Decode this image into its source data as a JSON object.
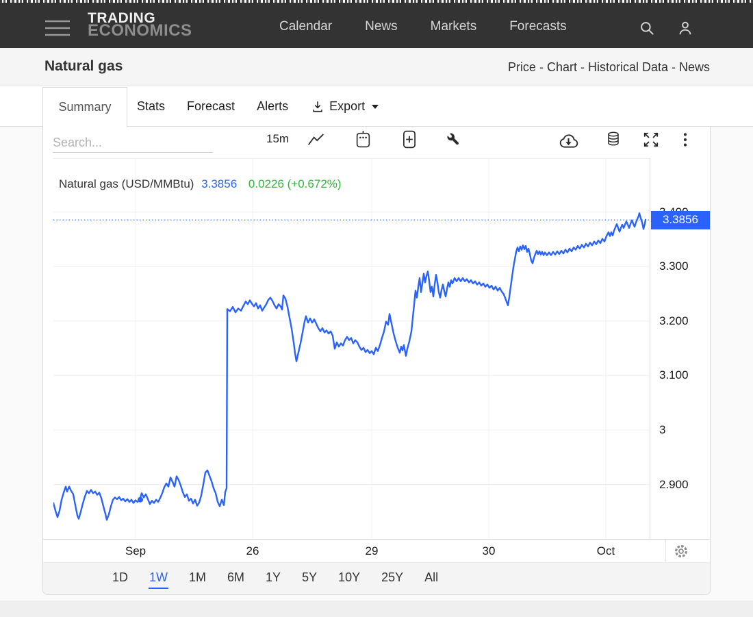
{
  "header": {
    "logo_line1": "TRADING",
    "logo_line2": "ECONOMICS",
    "nav_items": [
      "Calendar",
      "News",
      "Markets",
      "Forecasts"
    ]
  },
  "title_bar": {
    "title": "Natural gas",
    "links": "Price - Chart - Historical Data - News"
  },
  "tabs": {
    "active": "Summary",
    "items": [
      "Summary",
      "Stats",
      "Forecast",
      "Alerts"
    ],
    "export_label": "Export"
  },
  "toolbar": {
    "search_placeholder": "Search...",
    "interval": "15m"
  },
  "icons": {
    "menu": "hamburger",
    "search": "magnifier",
    "account": "person-outline",
    "export": "download-arrow-tray",
    "chart_style": "zigzag-line",
    "date_interval": "calendar-dots",
    "compare": "plus-box",
    "tools": "wrench",
    "download": "cloud-download",
    "data_source": "database-cylinders",
    "fullscreen": "expand-arrows",
    "more": "kebab-dots",
    "settings": "gear"
  },
  "colors": {
    "accent_blue": "#2962ff",
    "up_green": "#2abb38",
    "header_bg": "#333333",
    "grid": "#f0f0f0"
  },
  "range_bar": {
    "active": "1W",
    "items": [
      "1D",
      "1W",
      "1M",
      "6M",
      "1Y",
      "5Y",
      "10Y",
      "25Y",
      "All"
    ]
  },
  "chart_data": {
    "type": "line",
    "title": "Natural gas (USD/MMBtu)",
    "last_price": "3.3856",
    "change": "0.0226",
    "change_pct": "(+0.672%)",
    "price_line": 3.3856,
    "ylim": [
      2.8,
      3.499
    ],
    "x_extent": 871,
    "grid": true,
    "line_color": "#2962ff",
    "y_ticks": [
      {
        "value": 3.4,
        "label": "3.400"
      },
      {
        "value": 3.3,
        "label": "3.300"
      },
      {
        "value": 3.2,
        "label": "3.200"
      },
      {
        "value": 3.1,
        "label": "3.100"
      },
      {
        "value": 3.0,
        "label": "3"
      },
      {
        "value": 2.9,
        "label": "2.900"
      }
    ],
    "x_ticks": [
      {
        "label": "Sep",
        "dx": 120
      },
      {
        "label": "26",
        "dx": 291
      },
      {
        "label": "29",
        "dx": 465
      },
      {
        "label": "30",
        "dx": 636
      },
      {
        "label": "Oct",
        "dx": 807
      }
    ],
    "marker_dot": {
      "dx": 127,
      "price": 2.872
    },
    "points": [
      [
        0,
        2.866
      ],
      [
        3,
        2.852
      ],
      [
        6,
        2.84
      ],
      [
        9,
        2.852
      ],
      [
        12,
        2.872
      ],
      [
        15,
        2.885
      ],
      [
        18,
        2.896
      ],
      [
        20,
        2.887
      ],
      [
        23,
        2.896
      ],
      [
        26,
        2.888
      ],
      [
        29,
        2.882
      ],
      [
        32,
        2.862
      ],
      [
        35,
        2.843
      ],
      [
        37,
        2.837
      ],
      [
        40,
        2.85
      ],
      [
        43,
        2.865
      ],
      [
        46,
        2.878
      ],
      [
        49,
        2.888
      ],
      [
        52,
        2.884
      ],
      [
        55,
        2.89
      ],
      [
        58,
        2.884
      ],
      [
        61,
        2.887
      ],
      [
        64,
        2.881
      ],
      [
        67,
        2.885
      ],
      [
        70,
        2.875
      ],
      [
        73,
        2.86
      ],
      [
        76,
        2.846
      ],
      [
        78,
        2.835
      ],
      [
        81,
        2.845
      ],
      [
        84,
        2.86
      ],
      [
        87,
        2.872
      ],
      [
        90,
        2.876
      ],
      [
        93,
        2.873
      ],
      [
        96,
        2.877
      ],
      [
        99,
        2.871
      ],
      [
        102,
        2.874
      ],
      [
        105,
        2.869
      ],
      [
        108,
        2.873
      ],
      [
        111,
        2.868
      ],
      [
        114,
        2.872
      ],
      [
        117,
        2.866
      ],
      [
        120,
        2.871
      ],
      [
        123,
        2.868
      ],
      [
        126,
        2.872
      ],
      [
        129,
        2.884
      ],
      [
        132,
        2.876
      ],
      [
        135,
        2.882
      ],
      [
        138,
        2.873
      ],
      [
        141,
        2.864
      ],
      [
        144,
        2.87
      ],
      [
        147,
        2.866
      ],
      [
        150,
        2.872
      ],
      [
        153,
        2.868
      ],
      [
        156,
        2.875
      ],
      [
        159,
        2.884
      ],
      [
        162,
        2.895
      ],
      [
        165,
        2.902
      ],
      [
        168,
        2.896
      ],
      [
        171,
        2.913
      ],
      [
        174,
        2.905
      ],
      [
        177,
        2.896
      ],
      [
        180,
        2.915
      ],
      [
        183,
        2.908
      ],
      [
        186,
        2.898
      ],
      [
        189,
        2.886
      ],
      [
        192,
        2.877
      ],
      [
        195,
        2.882
      ],
      [
        198,
        2.87
      ],
      [
        201,
        2.874
      ],
      [
        204,
        2.865
      ],
      [
        207,
        2.872
      ],
      [
        210,
        2.861
      ],
      [
        213,
        2.867
      ],
      [
        216,
        2.88
      ],
      [
        219,
        2.9
      ],
      [
        222,
        2.922
      ],
      [
        225,
        2.926
      ],
      [
        228,
        2.916
      ],
      [
        231,
        2.906
      ],
      [
        234,
        2.893
      ],
      [
        237,
        2.884
      ],
      [
        240,
        2.868
      ],
      [
        243,
        2.86
      ],
      [
        246,
        2.872
      ],
      [
        249,
        2.862
      ],
      [
        251,
        2.886
      ],
      [
        253,
        2.893
      ],
      [
        254,
        3.222
      ],
      [
        258,
        3.218
      ],
      [
        262,
        3.226
      ],
      [
        266,
        3.216
      ],
      [
        270,
        3.223
      ],
      [
        274,
        3.219
      ],
      [
        278,
        3.229
      ],
      [
        281,
        3.236
      ],
      [
        284,
        3.231
      ],
      [
        287,
        3.238
      ],
      [
        290,
        3.232
      ],
      [
        293,
        3.227
      ],
      [
        296,
        3.233
      ],
      [
        299,
        3.223
      ],
      [
        302,
        3.229
      ],
      [
        305,
        3.219
      ],
      [
        308,
        3.225
      ],
      [
        311,
        3.231
      ],
      [
        314,
        3.239
      ],
      [
        317,
        3.243
      ],
      [
        320,
        3.237
      ],
      [
        323,
        3.229
      ],
      [
        326,
        3.223
      ],
      [
        329,
        3.231
      ],
      [
        332,
        3.227
      ],
      [
        334,
        3.221
      ],
      [
        336,
        3.247
      ],
      [
        339,
        3.241
      ],
      [
        342,
        3.226
      ],
      [
        345,
        3.206
      ],
      [
        348,
        3.186
      ],
      [
        351,
        3.161
      ],
      [
        353,
        3.141
      ],
      [
        355,
        3.126
      ],
      [
        358,
        3.143
      ],
      [
        361,
        3.159
      ],
      [
        364,
        3.179
      ],
      [
        367,
        3.199
      ],
      [
        369,
        3.209
      ],
      [
        372,
        3.197
      ],
      [
        375,
        3.205
      ],
      [
        378,
        3.197
      ],
      [
        381,
        3.203
      ],
      [
        384,
        3.195
      ],
      [
        387,
        3.187
      ],
      [
        390,
        3.181
      ],
      [
        393,
        3.187
      ],
      [
        396,
        3.179
      ],
      [
        399,
        3.183
      ],
      [
        402,
        3.177
      ],
      [
        405,
        3.181
      ],
      [
        408,
        3.173
      ],
      [
        411,
        3.149
      ],
      [
        414,
        3.161
      ],
      [
        417,
        3.153
      ],
      [
        420,
        3.159
      ],
      [
        423,
        3.155
      ],
      [
        426,
        3.165
      ],
      [
        429,
        3.171
      ],
      [
        432,
        3.165
      ],
      [
        435,
        3.169
      ],
      [
        438,
        3.159
      ],
      [
        441,
        3.165
      ],
      [
        444,
        3.161
      ],
      [
        447,
        3.153
      ],
      [
        450,
        3.147
      ],
      [
        453,
        3.151
      ],
      [
        456,
        3.143
      ],
      [
        459,
        3.147
      ],
      [
        462,
        3.141
      ],
      [
        465,
        3.145
      ],
      [
        468,
        3.139
      ],
      [
        471,
        3.151
      ],
      [
        474,
        3.145
      ],
      [
        477,
        3.156
      ],
      [
        480,
        3.169
      ],
      [
        483,
        3.181
      ],
      [
        486,
        3.199
      ],
      [
        489,
        3.193
      ],
      [
        491,
        3.213
      ],
      [
        493,
        3.201
      ],
      [
        495,
        3.189
      ],
      [
        497,
        3.177
      ],
      [
        500,
        3.163
      ],
      [
        503,
        3.151
      ],
      [
        506,
        3.142
      ],
      [
        508,
        3.153
      ],
      [
        510,
        3.146
      ],
      [
        512,
        3.156
      ],
      [
        515,
        3.136
      ],
      [
        517,
        3.149
      ],
      [
        520,
        3.163
      ],
      [
        523,
        3.181
      ],
      [
        525,
        3.206
      ],
      [
        527,
        3.231
      ],
      [
        529,
        3.256
      ],
      [
        531,
        3.243
      ],
      [
        533,
        3.263
      ],
      [
        535,
        3.279
      ],
      [
        537,
        3.253
      ],
      [
        539,
        3.269
      ],
      [
        541,
        3.287
      ],
      [
        543,
        3.271
      ],
      [
        545,
        3.283
      ],
      [
        547,
        3.291
      ],
      [
        549,
        3.273
      ],
      [
        551,
        3.253
      ],
      [
        553,
        3.263
      ],
      [
        555,
        3.245
      ],
      [
        557,
        3.267
      ],
      [
        559,
        3.285
      ],
      [
        561,
        3.271
      ],
      [
        563,
        3.253
      ],
      [
        565,
        3.243
      ],
      [
        567,
        3.257
      ],
      [
        569,
        3.267
      ],
      [
        571,
        3.255
      ],
      [
        573,
        3.245
      ],
      [
        575,
        3.259
      ],
      [
        577,
        3.271
      ],
      [
        579,
        3.263
      ],
      [
        581,
        3.275
      ],
      [
        583,
        3.269
      ],
      [
        586,
        3.279
      ],
      [
        589,
        3.273
      ],
      [
        592,
        3.279
      ],
      [
        595,
        3.273
      ],
      [
        598,
        3.279
      ],
      [
        601,
        3.273
      ],
      [
        604,
        3.277
      ],
      [
        607,
        3.271
      ],
      [
        610,
        3.275
      ],
      [
        613,
        3.269
      ],
      [
        616,
        3.273
      ],
      [
        619,
        3.267
      ],
      [
        622,
        3.271
      ],
      [
        625,
        3.265
      ],
      [
        628,
        3.269
      ],
      [
        631,
        3.263
      ],
      [
        634,
        3.267
      ],
      [
        637,
        3.261
      ],
      [
        640,
        3.265
      ],
      [
        643,
        3.258
      ],
      [
        646,
        3.263
      ],
      [
        649,
        3.256
      ],
      [
        652,
        3.261
      ],
      [
        655,
        3.254
      ],
      [
        658,
        3.249
      ],
      [
        661,
        3.239
      ],
      [
        664,
        3.229
      ],
      [
        666,
        3.244
      ],
      [
        668,
        3.263
      ],
      [
        670,
        3.281
      ],
      [
        672,
        3.299
      ],
      [
        674,
        3.313
      ],
      [
        676,
        3.327
      ],
      [
        678,
        3.335
      ],
      [
        680,
        3.328
      ],
      [
        682,
        3.337
      ],
      [
        684,
        3.331
      ],
      [
        686,
        3.339
      ],
      [
        688,
        3.332
      ],
      [
        690,
        3.338
      ],
      [
        692,
        3.327
      ],
      [
        694,
        3.333
      ],
      [
        696,
        3.323
      ],
      [
        698,
        3.311
      ],
      [
        700,
        3.306
      ],
      [
        702,
        3.316
      ],
      [
        704,
        3.323
      ],
      [
        706,
        3.329
      ],
      [
        708,
        3.323
      ],
      [
        710,
        3.328
      ],
      [
        712,
        3.322
      ],
      [
        714,
        3.327
      ],
      [
        716,
        3.321
      ],
      [
        718,
        3.326
      ],
      [
        721,
        3.321
      ],
      [
        724,
        3.326
      ],
      [
        727,
        3.321
      ],
      [
        730,
        3.327
      ],
      [
        733,
        3.322
      ],
      [
        736,
        3.328
      ],
      [
        739,
        3.323
      ],
      [
        742,
        3.329
      ],
      [
        745,
        3.324
      ],
      [
        748,
        3.331
      ],
      [
        751,
        3.326
      ],
      [
        754,
        3.333
      ],
      [
        757,
        3.328
      ],
      [
        760,
        3.335
      ],
      [
        763,
        3.331
      ],
      [
        766,
        3.338
      ],
      [
        769,
        3.333
      ],
      [
        772,
        3.34
      ],
      [
        775,
        3.335
      ],
      [
        778,
        3.342
      ],
      [
        781,
        3.337
      ],
      [
        784,
        3.344
      ],
      [
        787,
        3.339
      ],
      [
        790,
        3.346
      ],
      [
        793,
        3.341
      ],
      [
        796,
        3.348
      ],
      [
        799,
        3.343
      ],
      [
        802,
        3.351
      ],
      [
        805,
        3.346
      ],
      [
        808,
        3.356
      ],
      [
        811,
        3.363
      ],
      [
        813,
        3.356
      ],
      [
        815,
        3.363
      ],
      [
        817,
        3.357
      ],
      [
        819,
        3.366
      ],
      [
        821,
        3.372
      ],
      [
        823,
        3.378
      ],
      [
        825,
        3.371
      ],
      [
        827,
        3.364
      ],
      [
        829,
        3.371
      ],
      [
        831,
        3.377
      ],
      [
        833,
        3.371
      ],
      [
        835,
        3.377
      ],
      [
        837,
        3.383
      ],
      [
        839,
        3.377
      ],
      [
        841,
        3.371
      ],
      [
        843,
        3.378
      ],
      [
        845,
        3.385
      ],
      [
        847,
        3.379
      ],
      [
        849,
        3.373
      ],
      [
        851,
        3.381
      ],
      [
        853,
        3.387
      ],
      [
        855,
        3.393
      ],
      [
        856,
        3.398
      ],
      [
        858,
        3.389
      ],
      [
        860,
        3.381
      ],
      [
        862,
        3.369
      ],
      [
        864,
        3.379
      ],
      [
        865,
        3.386
      ]
    ]
  }
}
